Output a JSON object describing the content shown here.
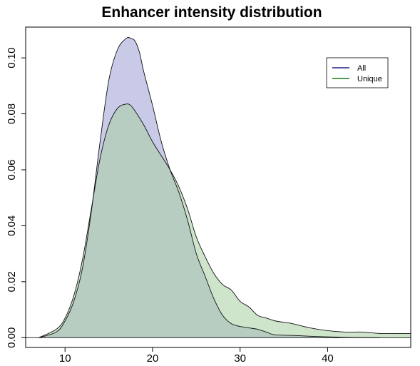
{
  "chart_data": {
    "type": "area",
    "title": "Enhancer intensity distribution",
    "xlabel": "",
    "ylabel": "",
    "xlim": [
      5.5,
      49.5
    ],
    "ylim": [
      -0.0035,
      0.111
    ],
    "xticks": [
      10,
      20,
      30,
      40
    ],
    "yticks": [
      0.0,
      0.02,
      0.04,
      0.06,
      0.08,
      0.1
    ],
    "ytick_labels": [
      "0.00",
      "0.02",
      "0.04",
      "0.06",
      "0.08",
      "0.10"
    ],
    "legend": {
      "position": "top-right",
      "entries": [
        {
          "label": "All",
          "color": "#1f1f8f"
        },
        {
          "label": "Unique",
          "color": "#1a7a1a"
        }
      ]
    },
    "series": [
      {
        "name": "All",
        "line_color": "#1f1f8f",
        "fill_color": "#c9c9e8",
        "x": [
          7,
          9,
          10,
          11,
          12,
          13,
          14,
          15,
          16,
          17,
          17.5,
          18,
          18.5,
          19,
          20,
          21,
          22,
          23,
          24,
          25,
          26,
          27,
          28,
          29,
          30,
          31,
          32,
          33,
          34,
          36,
          38,
          40,
          42,
          44,
          46
        ],
        "y": [
          0.0,
          0.002,
          0.006,
          0.013,
          0.025,
          0.045,
          0.07,
          0.092,
          0.103,
          0.107,
          0.107,
          0.106,
          0.102,
          0.095,
          0.083,
          0.07,
          0.06,
          0.052,
          0.042,
          0.03,
          0.022,
          0.014,
          0.008,
          0.005,
          0.004,
          0.0035,
          0.003,
          0.002,
          0.001,
          0.0008,
          0.0005,
          0.0003,
          0.0001,
          5e-05,
          0.0
        ]
      },
      {
        "name": "Unique",
        "line_color": "#1a7a1a",
        "fill_color": "#a8cfa0",
        "x": [
          7,
          9,
          10,
          11,
          12,
          13,
          14,
          15,
          16,
          17,
          17.5,
          18,
          19,
          20,
          21,
          22,
          23,
          24,
          25,
          26,
          27,
          28,
          29,
          30,
          31,
          32,
          33,
          34,
          35,
          36,
          38,
          40,
          42,
          44,
          46,
          48,
          49.5
        ],
        "y": [
          0.0,
          0.003,
          0.007,
          0.015,
          0.028,
          0.046,
          0.064,
          0.076,
          0.082,
          0.0835,
          0.083,
          0.081,
          0.076,
          0.07,
          0.065,
          0.06,
          0.054,
          0.046,
          0.036,
          0.029,
          0.023,
          0.019,
          0.017,
          0.013,
          0.011,
          0.008,
          0.007,
          0.006,
          0.0055,
          0.005,
          0.0035,
          0.0025,
          0.002,
          0.002,
          0.0015,
          0.0015,
          0.0015
        ]
      }
    ]
  }
}
